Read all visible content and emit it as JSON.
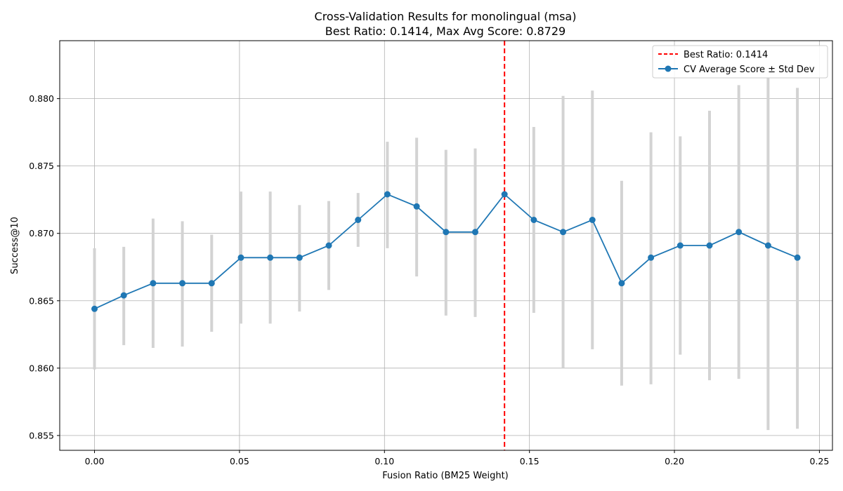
{
  "chart_data": {
    "type": "line",
    "title": "Cross-Validation Results for monolingual (msa)",
    "subtitle": "Best Ratio: 0.1414, Max Avg Score: 0.8729",
    "xlabel": "Fusion Ratio (BM25 Weight)",
    "ylabel": "Success@10",
    "xlim": [
      -0.012,
      0.2545
    ],
    "ylim": [
      0.8539,
      0.8843
    ],
    "xticks": [
      0.0,
      0.05,
      0.1,
      0.15,
      0.2,
      0.25
    ],
    "xtick_labels": [
      "0.00",
      "0.05",
      "0.10",
      "0.15",
      "0.20",
      "0.25"
    ],
    "yticks": [
      0.855,
      0.86,
      0.865,
      0.87,
      0.875,
      0.88
    ],
    "ytick_labels": [
      "0.855",
      "0.860",
      "0.865",
      "0.870",
      "0.875",
      "0.880"
    ],
    "grid": true,
    "legend_position": "top-right",
    "best_ratio": {
      "x": 0.1414,
      "label": "Best Ratio: 0.1414",
      "color": "#ff0000"
    },
    "series": [
      {
        "name": "CV Average Score ± Std Dev",
        "color": "#1f77b4",
        "error_color": "#d3d3d3",
        "x": [
          0.0,
          0.0101,
          0.0202,
          0.0303,
          0.0404,
          0.0505,
          0.0606,
          0.0707,
          0.0808,
          0.0909,
          0.101,
          0.1111,
          0.1212,
          0.1313,
          0.1414,
          0.1515,
          0.1616,
          0.1717,
          0.1818,
          0.1919,
          0.202,
          0.2121,
          0.2222,
          0.2323,
          0.2424
        ],
        "y": [
          0.8644,
          0.8654,
          0.8663,
          0.8663,
          0.8663,
          0.8682,
          0.8682,
          0.8682,
          0.8691,
          0.871,
          0.8729,
          0.872,
          0.8701,
          0.8701,
          0.8729,
          0.871,
          0.8701,
          0.871,
          0.8663,
          0.8682,
          0.8691,
          0.8691,
          0.8701,
          0.8691,
          0.8682
        ],
        "err_low": [
          0.8599,
          0.8617,
          0.8615,
          0.8616,
          0.8627,
          0.8633,
          0.8633,
          0.8642,
          0.8658,
          0.869,
          0.8689,
          0.8668,
          0.8639,
          0.8638,
          0.8729,
          0.8641,
          0.86,
          0.8614,
          0.8587,
          0.8588,
          0.861,
          0.8591,
          0.8592,
          0.8554,
          0.8555
        ],
        "err_high": [
          0.8689,
          0.869,
          0.8711,
          0.8709,
          0.8699,
          0.8731,
          0.8731,
          0.8721,
          0.8724,
          0.873,
          0.8768,
          0.8771,
          0.8762,
          0.8763,
          0.8729,
          0.8779,
          0.8802,
          0.8806,
          0.8739,
          0.8775,
          0.8772,
          0.8791,
          0.881,
          0.8816,
          0.8808
        ]
      }
    ]
  }
}
